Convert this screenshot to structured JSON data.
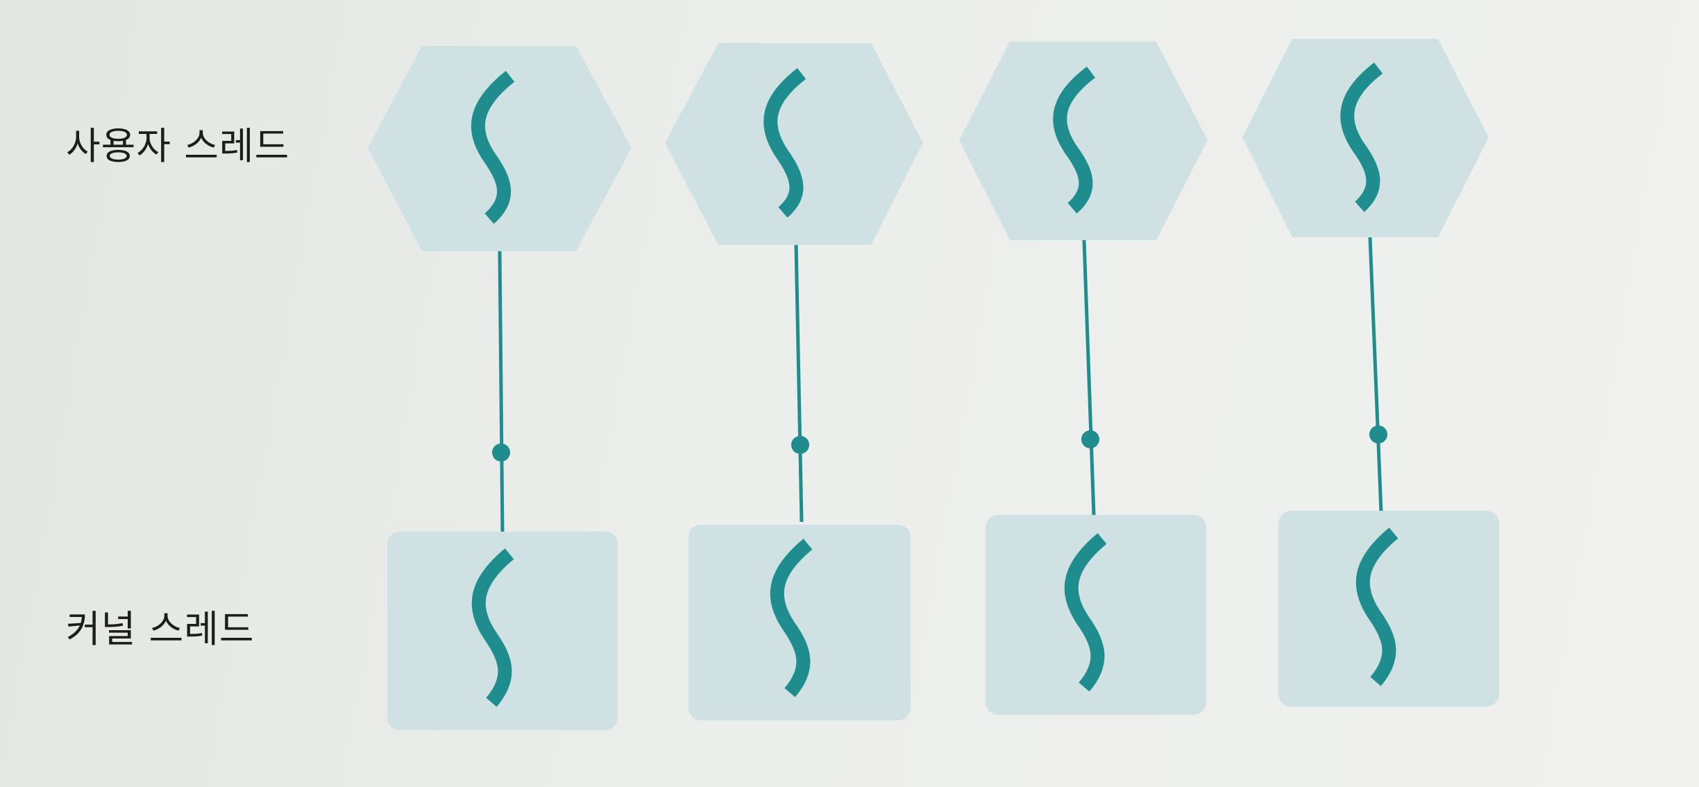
{
  "labels": {
    "user_thread": "사용자 스레드",
    "kernel_thread": "커널 스레드"
  },
  "colors": {
    "background": "#eceeec",
    "shape_fill": "#cfe1e2",
    "accent": "#1f8c8e"
  },
  "icons": {
    "thread": "thread-wave-icon",
    "connector": "connector-dot"
  },
  "pairs": 4,
  "mapping": "one-to-one"
}
